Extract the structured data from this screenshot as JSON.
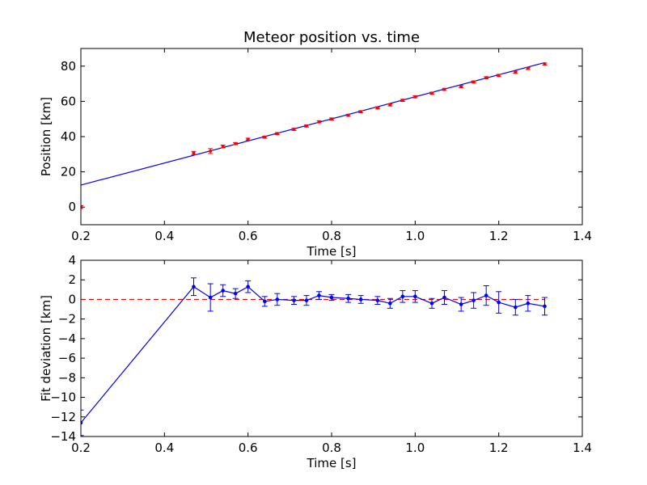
{
  "chart_data": [
    {
      "type": "scatter",
      "title": "Meteor position vs. time",
      "xlabel": "Time [s]",
      "ylabel": "Position [km]",
      "xlim": [
        0.2,
        1.4
      ],
      "ylim": [
        -10,
        90
      ],
      "xticks": [
        "0.2",
        "0.4",
        "0.6",
        "0.8",
        "1.0",
        "1.2",
        "1.4"
      ],
      "yticks": [
        "0",
        "20",
        "40",
        "60",
        "80"
      ],
      "grid": false,
      "marker_color": "#ff0000",
      "errorbar_color": "#ff0000",
      "fit_color": "#0000ff",
      "fit_line": {
        "x": [
          0.2,
          1.31
        ],
        "y": [
          12.5,
          82.0
        ]
      },
      "points": {
        "x": [
          0.2,
          0.47,
          0.51,
          0.54,
          0.57,
          0.6,
          0.64,
          0.67,
          0.71,
          0.74,
          0.77,
          0.8,
          0.84,
          0.87,
          0.91,
          0.94,
          0.97,
          1.0,
          1.04,
          1.07,
          1.11,
          1.14,
          1.17,
          1.2,
          1.24,
          1.27,
          1.31
        ],
        "y": [
          0.0,
          30.7,
          31.8,
          34.4,
          36.0,
          38.5,
          39.7,
          41.7,
          44.1,
          46.0,
          48.4,
          50.0,
          52.1,
          54.1,
          56.3,
          58.0,
          60.6,
          62.6,
          64.6,
          66.8,
          68.4,
          71.0,
          73.4,
          74.7,
          76.5,
          78.7,
          81.2
        ],
        "err": [
          0.8,
          0.9,
          1.4,
          0.8,
          0.6,
          0.6,
          0.6,
          0.6,
          0.6,
          0.6,
          0.6,
          0.6,
          0.6,
          0.6,
          0.6,
          0.6,
          0.6,
          0.6,
          0.6,
          0.6,
          0.6,
          0.6,
          0.6,
          0.6,
          0.6,
          0.6,
          0.6
        ]
      }
    },
    {
      "type": "line",
      "title": "",
      "xlabel": "Time [s]",
      "ylabel": "Fit deviation [km]",
      "xlim": [
        0.2,
        1.4
      ],
      "ylim": [
        -14,
        4
      ],
      "xticks": [
        "0.2",
        "0.4",
        "0.6",
        "0.8",
        "1.0",
        "1.2",
        "1.4"
      ],
      "yticks": [
        "−14",
        "−12",
        "−10",
        "−8",
        "−6",
        "−4",
        "−2",
        "0",
        "2",
        "4"
      ],
      "grid": false,
      "line_color": "#0000ff",
      "reference_line": {
        "y": 0,
        "color": "#ff0000",
        "style": "dashed",
        "x": [
          0.2,
          1.31
        ]
      },
      "series": [
        {
          "x": [
            0.2,
            0.47,
            0.51,
            0.54,
            0.57,
            0.6,
            0.64,
            0.67,
            0.71,
            0.74,
            0.77,
            0.8,
            0.84,
            0.87,
            0.91,
            0.94,
            0.97,
            1.0,
            1.04,
            1.07,
            1.11,
            1.14,
            1.17,
            1.2,
            1.24,
            1.27,
            1.31
          ],
          "y": [
            -12.6,
            1.3,
            0.2,
            0.9,
            0.6,
            1.3,
            -0.2,
            0.0,
            -0.1,
            -0.1,
            0.4,
            0.2,
            0.1,
            0.0,
            -0.1,
            -0.4,
            0.3,
            0.3,
            -0.4,
            0.2,
            -0.5,
            -0.1,
            0.4,
            -0.3,
            -0.8,
            -0.4,
            -0.7
          ],
          "err": [
            1.3,
            0.9,
            1.4,
            0.6,
            0.5,
            0.6,
            0.5,
            0.6,
            0.4,
            0.5,
            0.4,
            0.3,
            0.4,
            0.4,
            0.4,
            0.5,
            0.6,
            0.6,
            0.5,
            0.7,
            0.7,
            0.8,
            1.0,
            1.1,
            0.8,
            0.8,
            0.9
          ]
        }
      ]
    }
  ]
}
